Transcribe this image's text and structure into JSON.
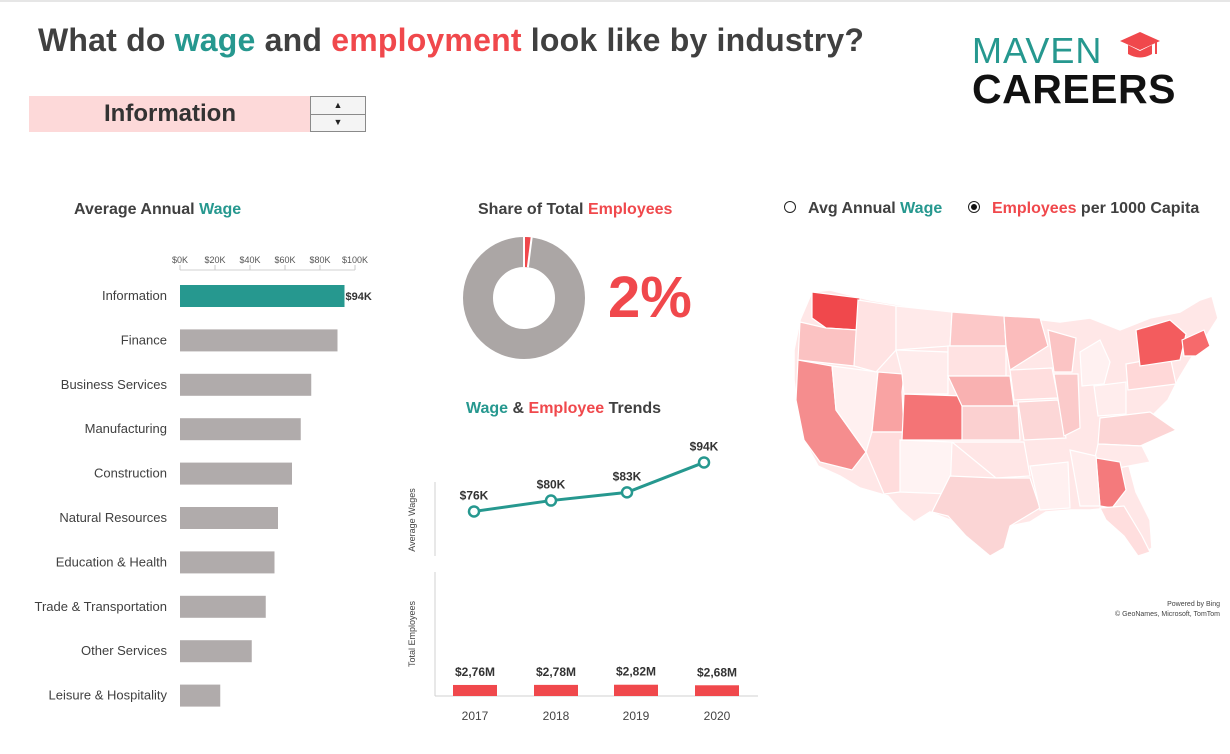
{
  "header": {
    "title_part1": "What do ",
    "title_wage": "wage",
    "title_part2": " and ",
    "title_employment": "employment",
    "title_part3": " look like by industry?"
  },
  "logo": {
    "top": "MAVEN",
    "bottom": "CAREERS"
  },
  "selector": {
    "value": "Information",
    "up_icon": "triangle-up-icon",
    "down_icon": "triangle-down-icon"
  },
  "wage_section": {
    "title_part1": "Average Annual ",
    "title_wage": "Wage"
  },
  "share_section": {
    "title_part1": "Share of Total ",
    "title_employees": "Employees",
    "share_label": "2%"
  },
  "trends_section": {
    "title_wage": "Wage",
    "title_amp": " & ",
    "title_employee": "Employee",
    "title_trends": " Trends"
  },
  "map_section": {
    "radio_wage_part1": "Avg Annual ",
    "radio_wage_part2": "Wage",
    "radio_emp_part1": "Employees",
    "radio_emp_part2": " per 1000 Capita",
    "selected": "employees",
    "credit_line1": "Powered by Bing",
    "credit_line2": "© GeoNames, Microsoft, TomTom"
  },
  "colors": {
    "teal": "#26988f",
    "red": "#f0484c",
    "gray_bar": "#b0abab",
    "donut_gray": "#aba6a5",
    "selector_bg": "#fdd9d9"
  },
  "chart_data": [
    {
      "type": "bar",
      "orientation": "horizontal",
      "title": "Average Annual Wage",
      "categories": [
        "Information",
        "Finance",
        "Business Services",
        "Manufacturing",
        "Construction",
        "Natural Resources",
        "Education & Health",
        "Trade & Transportation",
        "Other Services",
        "Leisure & Hospitality"
      ],
      "values": [
        94,
        90,
        75,
        69,
        64,
        56,
        54,
        49,
        41,
        23
      ],
      "unit": "K",
      "data_labels": [
        "$94K"
      ],
      "highlight_index": 0,
      "xticks": [
        "$0K",
        "$20K",
        "$40K",
        "$60K",
        "$80K",
        "$100K"
      ],
      "xlim": [
        0,
        100
      ]
    },
    {
      "type": "pie",
      "donut": true,
      "title": "Share of Total Employees",
      "values": [
        2,
        98
      ],
      "label": "2%"
    },
    {
      "type": "line",
      "title": "Wage & Employee Trends",
      "x": [
        "2017",
        "2018",
        "2019",
        "2020"
      ],
      "values": [
        76,
        80,
        83,
        94
      ],
      "data_labels": [
        "$76K",
        "$80K",
        "$83K",
        "$94K"
      ],
      "ylabel": "Average Wages"
    },
    {
      "type": "bar",
      "title": "Wage & Employee Trends",
      "categories": [
        "2017",
        "2018",
        "2019",
        "2020"
      ],
      "values": [
        2.76,
        2.78,
        2.82,
        2.68
      ],
      "data_labels": [
        "$2,76M",
        "$2,78M",
        "$2,82M",
        "$2,68M"
      ],
      "ylabel": "Total Employees"
    }
  ]
}
